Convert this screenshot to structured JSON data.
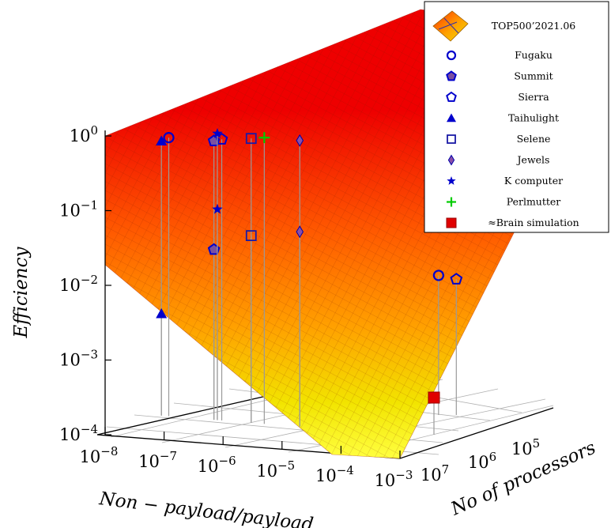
{
  "chart_data": {
    "type": "scatter",
    "subtype": "3d-surface-with-markers",
    "title": "",
    "ylabel": "Efficiency",
    "xlabel": "Non − payload/payload",
    "zlabel": "No of processors",
    "efficiency_ticks": [
      "10^0",
      "10^-1",
      "10^-2",
      "10^-3",
      "10^-4"
    ],
    "payload_ticks": [
      "10^-8",
      "10^-7",
      "10^-6",
      "10^-5",
      "10^-4",
      "10^-3"
    ],
    "processor_ticks": [
      "10^5",
      "10^6",
      "10^7"
    ],
    "scale": "log",
    "surface": {
      "name": "TOP500’2021.06",
      "colormap": "red-orange-yellow"
    },
    "legend_position": "top-right",
    "series": [
      {
        "name": "Fugaku",
        "marker": "circle-open",
        "color": "#0000cc",
        "efficiency": [
          0.82,
          0.036
        ],
        "payload": [
          1.2e-07,
          6e-05
        ]
      },
      {
        "name": "Summit",
        "marker": "pentagon-filled",
        "color": "#0000cc",
        "efficiency": [
          0.74,
          0.026
        ],
        "payload": [
          7e-07,
          7e-07
        ]
      },
      {
        "name": "Sierra",
        "marker": "pentagon-open",
        "color": "#0000cc",
        "efficiency": [
          0.78,
          0.032
        ],
        "payload": [
          9.5e-07,
          0.00012
        ]
      },
      {
        "name": "Taihulight",
        "marker": "triangle-filled",
        "color": "#0000cc",
        "efficiency": [
          0.74,
          0.0036
        ],
        "payload": [
          9e-08,
          9e-08
        ]
      },
      {
        "name": "Selene",
        "marker": "square-open",
        "color": "#1a1aa6",
        "efficiency": [
          0.8,
          0.04
        ],
        "payload": [
          3e-06,
          3e-06
        ]
      },
      {
        "name": "Jewels",
        "marker": "diamond-filled",
        "color": "#8a4fa8",
        "efficiency": [
          0.75,
          0.045
        ],
        "payload": [
          2e-05,
          2e-05
        ]
      },
      {
        "name": "K computer",
        "marker": "star",
        "color": "#0000cc",
        "efficiency": [
          0.93,
          0.09
        ],
        "payload": [
          8e-07,
          8e-07
        ]
      },
      {
        "name": "Perlmutter",
        "marker": "plus",
        "color": "#00cc00",
        "efficiency": [
          0.82
        ],
        "payload": [
          5e-06
        ]
      },
      {
        "name": "≈Brain simulation",
        "marker": "square-filled",
        "color": "#e00000",
        "efficiency": [
          0.0003
        ],
        "payload": [
          0.001
        ]
      }
    ]
  }
}
